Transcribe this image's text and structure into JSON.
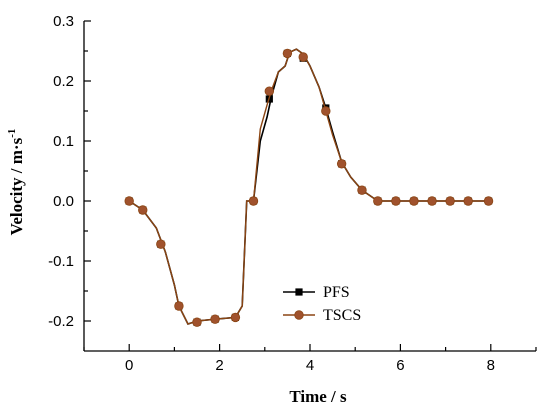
{
  "chart_data": {
    "type": "line",
    "title": "",
    "xlabel": "Time / s",
    "ylabel_main": "Velocity  / m·s",
    "ylabel_sup": "-1",
    "xlim": [
      -1,
      9
    ],
    "ylim": [
      -0.25,
      0.3
    ],
    "xticks": [
      0,
      2,
      4,
      6,
      8
    ],
    "xtick_labels": [
      "0",
      "2",
      "4",
      "6",
      "8"
    ],
    "yticks": [
      -0.2,
      -0.1,
      0.0,
      0.1,
      0.2,
      0.3
    ],
    "ytick_labels": [
      "-0.2",
      "-0.1",
      "0.0",
      "0.1",
      "0.2",
      "0.3"
    ],
    "grid": false,
    "legend_position": "lower-right",
    "series": [
      {
        "name": "PFS",
        "color": "#000000",
        "marker": "square",
        "line": [
          [
            0,
            0
          ],
          [
            0.3,
            -0.015
          ],
          [
            0.6,
            -0.045
          ],
          [
            0.8,
            -0.085
          ],
          [
            1.0,
            -0.14
          ],
          [
            1.1,
            -0.175
          ],
          [
            1.3,
            -0.205
          ],
          [
            1.5,
            -0.2
          ],
          [
            1.9,
            -0.197
          ],
          [
            2.35,
            -0.194
          ],
          [
            2.5,
            -0.175
          ],
          [
            2.6,
            0.0
          ],
          [
            2.75,
            0.0
          ],
          [
            2.9,
            0.1
          ],
          [
            3.05,
            0.14
          ],
          [
            3.15,
            0.175
          ],
          [
            3.3,
            0.215
          ],
          [
            3.45,
            0.225
          ],
          [
            3.55,
            0.248
          ],
          [
            3.7,
            0.253
          ],
          [
            3.85,
            0.245
          ],
          [
            4.0,
            0.225
          ],
          [
            4.2,
            0.19
          ],
          [
            4.35,
            0.155
          ],
          [
            4.5,
            0.115
          ],
          [
            4.7,
            0.065
          ],
          [
            4.9,
            0.04
          ],
          [
            5.15,
            0.018
          ],
          [
            5.5,
            0.0
          ],
          [
            8.0,
            0.0
          ]
        ],
        "markers": [
          [
            0,
            0
          ],
          [
            0.3,
            -0.015
          ],
          [
            0.7,
            -0.072
          ],
          [
            1.1,
            -0.175
          ],
          [
            1.5,
            -0.202
          ],
          [
            1.9,
            -0.197
          ],
          [
            2.35,
            -0.194
          ],
          [
            2.75,
            0.0
          ],
          [
            3.1,
            0.17
          ],
          [
            3.5,
            0.246
          ],
          [
            3.85,
            0.238
          ],
          [
            4.35,
            0.155
          ],
          [
            4.7,
            0.062
          ],
          [
            5.15,
            0.018
          ],
          [
            5.5,
            0.0
          ],
          [
            5.9,
            0.0
          ],
          [
            6.3,
            0.0
          ],
          [
            6.7,
            0.0
          ],
          [
            7.1,
            0.0
          ],
          [
            7.5,
            0.0
          ],
          [
            7.95,
            0.0
          ]
        ]
      },
      {
        "name": "TSCS",
        "color": "#8B4513",
        "marker_fill": "#A0522D",
        "marker": "circle",
        "line": [
          [
            0,
            0
          ],
          [
            0.3,
            -0.015
          ],
          [
            0.6,
            -0.045
          ],
          [
            0.8,
            -0.085
          ],
          [
            1.0,
            -0.14
          ],
          [
            1.1,
            -0.175
          ],
          [
            1.3,
            -0.205
          ],
          [
            1.5,
            -0.2
          ],
          [
            1.9,
            -0.197
          ],
          [
            2.35,
            -0.194
          ],
          [
            2.5,
            -0.175
          ],
          [
            2.6,
            0.0
          ],
          [
            2.75,
            0.0
          ],
          [
            2.9,
            0.12
          ],
          [
            3.05,
            0.16
          ],
          [
            3.15,
            0.185
          ],
          [
            3.3,
            0.215
          ],
          [
            3.45,
            0.225
          ],
          [
            3.55,
            0.248
          ],
          [
            3.7,
            0.253
          ],
          [
            3.85,
            0.245
          ],
          [
            4.0,
            0.225
          ],
          [
            4.2,
            0.19
          ],
          [
            4.35,
            0.15
          ],
          [
            4.5,
            0.11
          ],
          [
            4.7,
            0.065
          ],
          [
            4.9,
            0.04
          ],
          [
            5.15,
            0.018
          ],
          [
            5.5,
            0.0
          ],
          [
            8.0,
            0.0
          ]
        ],
        "markers": [
          [
            0,
            0
          ],
          [
            0.3,
            -0.015
          ],
          [
            0.7,
            -0.072
          ],
          [
            1.1,
            -0.175
          ],
          [
            1.5,
            -0.202
          ],
          [
            1.9,
            -0.197
          ],
          [
            2.35,
            -0.194
          ],
          [
            2.75,
            0.0
          ],
          [
            3.1,
            0.183
          ],
          [
            3.5,
            0.246
          ],
          [
            3.85,
            0.24
          ],
          [
            4.35,
            0.15
          ],
          [
            4.7,
            0.062
          ],
          [
            5.15,
            0.018
          ],
          [
            5.5,
            0.0
          ],
          [
            5.9,
            0.0
          ],
          [
            6.3,
            0.0
          ],
          [
            6.7,
            0.0
          ],
          [
            7.1,
            0.0
          ],
          [
            7.5,
            0.0
          ],
          [
            7.95,
            0.0
          ]
        ]
      }
    ]
  }
}
